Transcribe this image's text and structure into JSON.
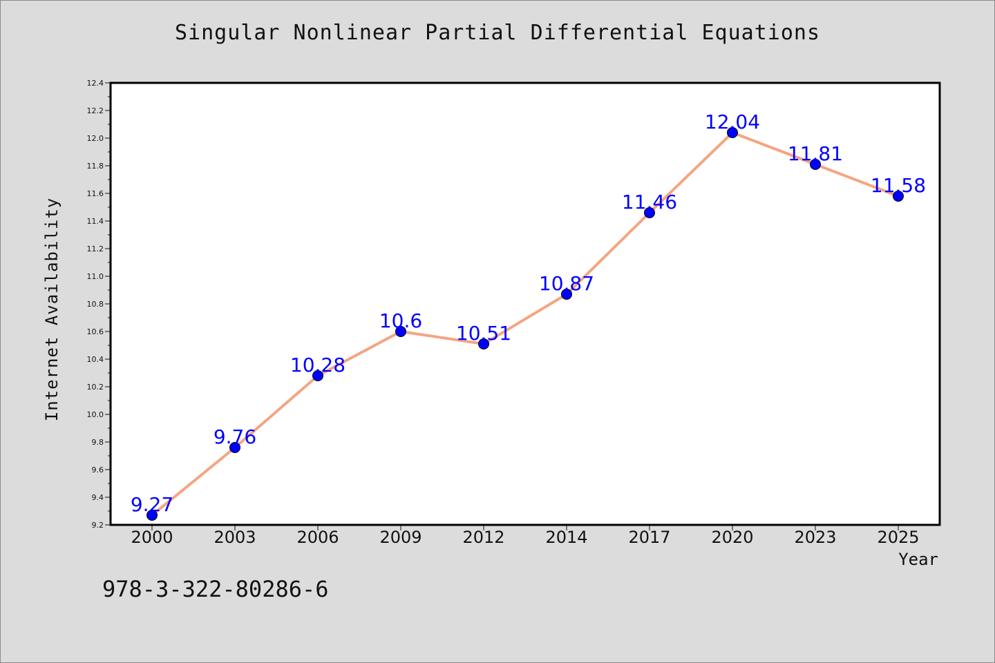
{
  "title": "Singular Nonlinear Partial Differential Equations",
  "isbn": "978-3-322-80286-6",
  "colors": {
    "background": "#dcdcdc",
    "plot_background": "#ffffff",
    "line": "#f4a582",
    "marker": "#0000ff",
    "data_label": "#0000ff"
  },
  "chart_data": {
    "type": "line",
    "title": "Singular Nonlinear Partial Differential Equations",
    "xlabel": "Year",
    "ylabel": "Internet Availability",
    "categories": [
      "2000",
      "2003",
      "2006",
      "2009",
      "2012",
      "2014",
      "2017",
      "2020",
      "2023",
      "2025"
    ],
    "series": [
      {
        "values": [
          9.27,
          9.76,
          10.28,
          10.6,
          10.51,
          10.87,
          11.46,
          12.04,
          11.81,
          11.58
        ],
        "labels": [
          "9.27",
          "9.76",
          "10.28",
          "10.6",
          "10.51",
          "10.87",
          "11.46",
          "12.04",
          "11.81",
          "11.58"
        ]
      }
    ],
    "ylim": [
      9.2,
      12.4
    ],
    "yticks": [
      "9.2",
      "9.4",
      "9.6",
      "9.8",
      "10.0",
      "10.2",
      "10.4",
      "10.6",
      "10.8",
      "11.0",
      "11.2",
      "11.4",
      "11.6",
      "11.8",
      "12.0",
      "12.2",
      "12.4"
    ],
    "grid": false,
    "legend": "none"
  }
}
